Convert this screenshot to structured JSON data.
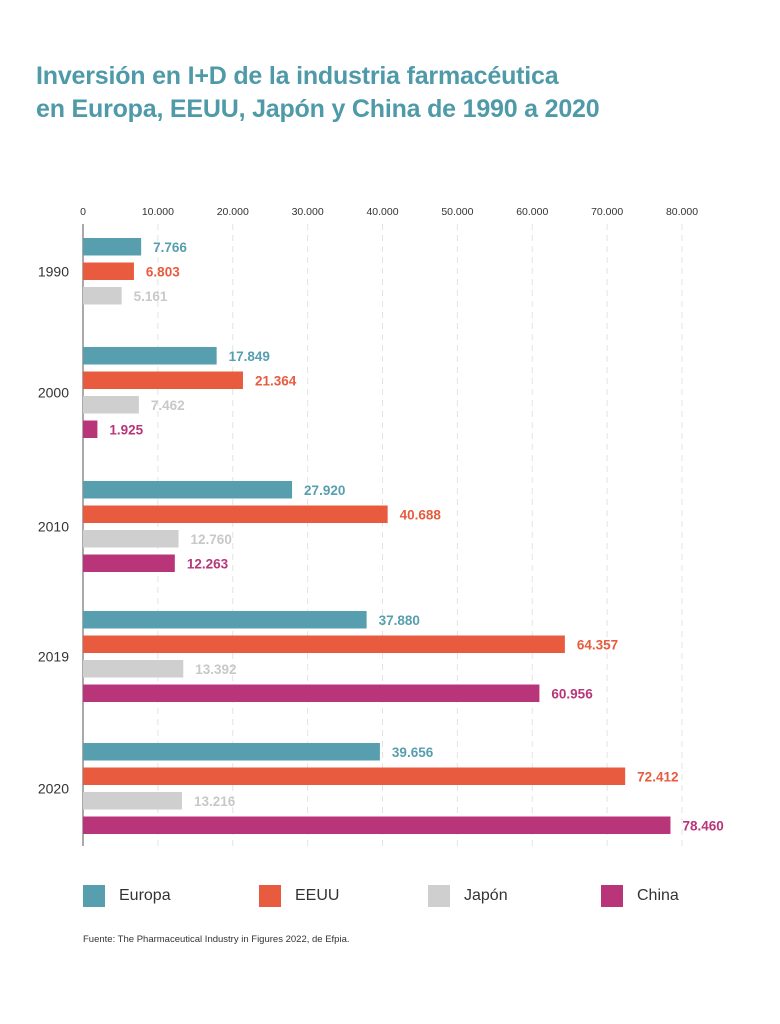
{
  "title_lines": [
    "Inversión en I+D de la industria farmacéutica",
    "en Europa, EEUU, Japón y China de 1990 a 2020"
  ],
  "source": "Fuente: The Pharmaceutical Industry in Figures 2022, de Efpia.",
  "chart_data": {
    "type": "bar",
    "orientation": "horizontal",
    "categories": [
      "1990",
      "2000",
      "2010",
      "2019",
      "2020"
    ],
    "x_ticks": [
      0,
      10000,
      20000,
      30000,
      40000,
      50000,
      60000,
      70000,
      80000
    ],
    "x_tick_labels": [
      "0",
      "10.000",
      "20.000",
      "30.000",
      "40.000",
      "50.000",
      "60.000",
      "70.000",
      "80.000"
    ],
    "xlim": [
      0,
      80000
    ],
    "grid": "vertical dashed",
    "legend_position": "bottom",
    "series": [
      {
        "name": "Europa",
        "color": "#579fae",
        "values": [
          7766,
          17849,
          27920,
          37880,
          39656
        ],
        "labels": [
          "7.766",
          "17.849",
          "27.920",
          "37.880",
          "39.656"
        ]
      },
      {
        "name": "EEUU",
        "color": "#e85b3e",
        "values": [
          6803,
          21364,
          40688,
          64357,
          72412
        ],
        "labels": [
          "6.803",
          "21.364",
          "40.688",
          "64.357",
          "72.412"
        ]
      },
      {
        "name": "Japón",
        "color": "#cfcfcf",
        "label_color": "#c8c8c8",
        "values": [
          5161,
          7462,
          12760,
          13392,
          13216
        ],
        "labels": [
          "5.161",
          "7.462",
          "12.760",
          "13.392",
          "13.216"
        ]
      },
      {
        "name": "China",
        "color": "#b8357a",
        "values": [
          null,
          1925,
          12263,
          60956,
          78460
        ],
        "labels": [
          null,
          "1.925",
          "12.263",
          "60.956",
          "78.460"
        ]
      }
    ]
  }
}
